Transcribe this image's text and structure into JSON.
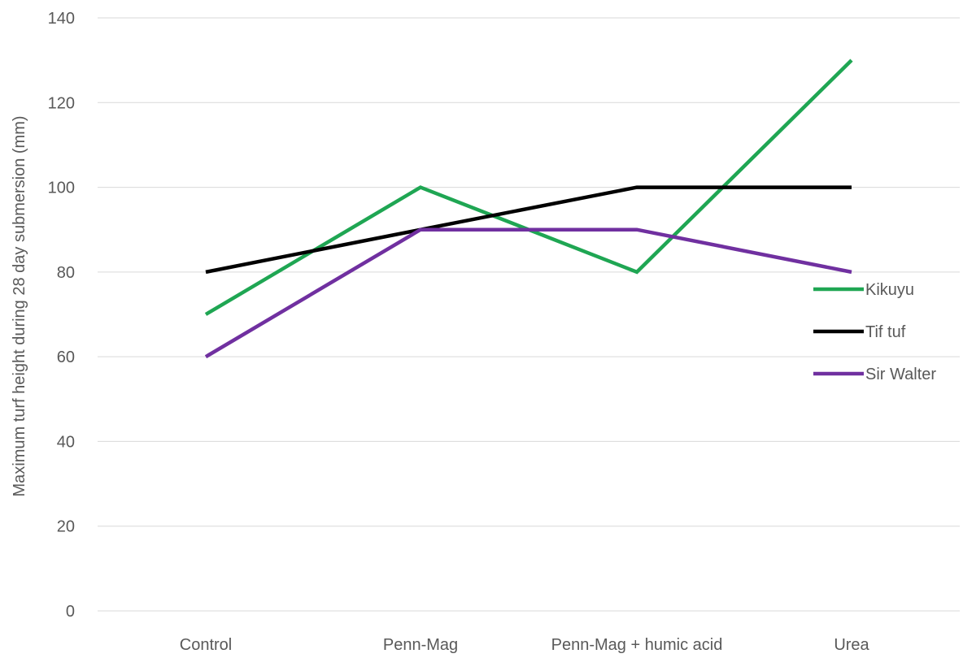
{
  "chart_data": {
    "type": "line",
    "title": "",
    "xlabel": "",
    "ylabel": "Maximum turf height during 28 day submersion (mm)",
    "categories": [
      "Control",
      "Penn-Mag",
      "Penn-Mag + humic acid",
      "Urea"
    ],
    "ylim": [
      0,
      140
    ],
    "yticks": [
      0,
      20,
      40,
      60,
      80,
      100,
      120,
      140
    ],
    "grid": true,
    "legend_position": "right",
    "series": [
      {
        "name": "Kikuyu",
        "color": "#1fa653",
        "values": [
          70,
          100,
          80,
          130
        ]
      },
      {
        "name": "Tif tuf",
        "color": "#000000",
        "values": [
          80,
          90,
          100,
          100
        ]
      },
      {
        "name": "Sir Walter",
        "color": "#7030a0",
        "values": [
          60,
          90,
          90,
          80
        ]
      }
    ]
  }
}
